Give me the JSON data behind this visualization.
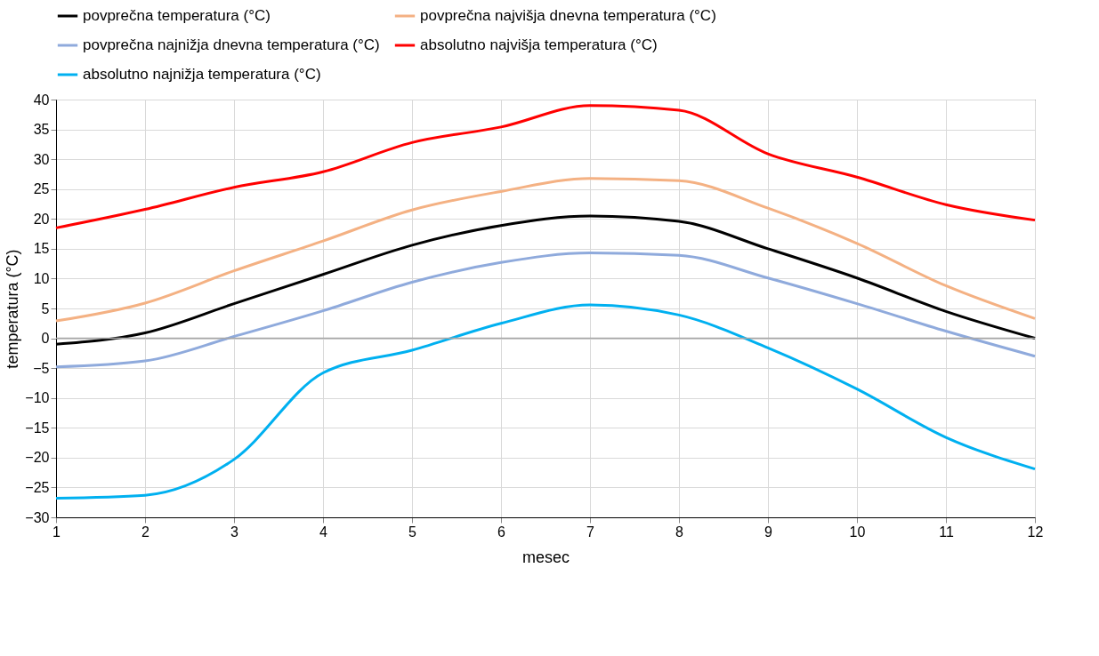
{
  "chart_data": {
    "type": "line",
    "xlabel": "mesec",
    "ylabel": "temperatura (°C)",
    "x": [
      1,
      2,
      3,
      4,
      5,
      6,
      7,
      8,
      9,
      10,
      11,
      12
    ],
    "series": [
      {
        "name": "povprečna temperatura (°C)",
        "color": "#000000",
        "values": [
          -1.0,
          0.9,
          5.8,
          10.7,
          15.6,
          18.9,
          20.5,
          19.6,
          15.0,
          10.1,
          4.5,
          0.0
        ]
      },
      {
        "name": "povprečna najvišja dnevna temperatura (°C)",
        "color": "#f4b183",
        "values": [
          2.9,
          5.9,
          11.3,
          16.3,
          21.5,
          24.6,
          26.8,
          26.4,
          21.8,
          15.9,
          8.8,
          3.3
        ]
      },
      {
        "name": "povprečna najnižja dnevna temperatura (°C)",
        "color": "#8faadc",
        "values": [
          -4.8,
          -3.8,
          0.3,
          4.6,
          9.4,
          12.7,
          14.3,
          13.9,
          10.1,
          5.8,
          1.2,
          -3.0
        ]
      },
      {
        "name": "absolutno najvišja temperatura (°C)",
        "color": "#ff0000",
        "values": [
          18.5,
          21.6,
          25.3,
          27.9,
          32.8,
          35.4,
          39.0,
          38.2,
          30.9,
          27.0,
          22.4,
          19.8
        ]
      },
      {
        "name": "absolutno najnižja temperatura (°C)",
        "color": "#00b0f0",
        "values": [
          -26.8,
          -26.3,
          -20.3,
          -5.8,
          -2.0,
          2.5,
          5.6,
          3.9,
          -1.6,
          -8.5,
          -16.6,
          -21.9
        ]
      }
    ],
    "xlim": [
      1,
      12
    ],
    "xticks": [
      1,
      2,
      3,
      4,
      5,
      6,
      7,
      8,
      9,
      10,
      11,
      12
    ],
    "ylim": [
      -30,
      40
    ],
    "yticks": [
      -30,
      -25,
      -20,
      -15,
      -10,
      -5,
      0,
      5,
      10,
      15,
      20,
      25,
      30,
      35,
      40
    ],
    "ref_lines": [
      {
        "axis": "y",
        "value": 0,
        "color": "#a6a6a6"
      }
    ],
    "grid": true,
    "legend": "top",
    "marker": "none",
    "line_style": "solid"
  }
}
